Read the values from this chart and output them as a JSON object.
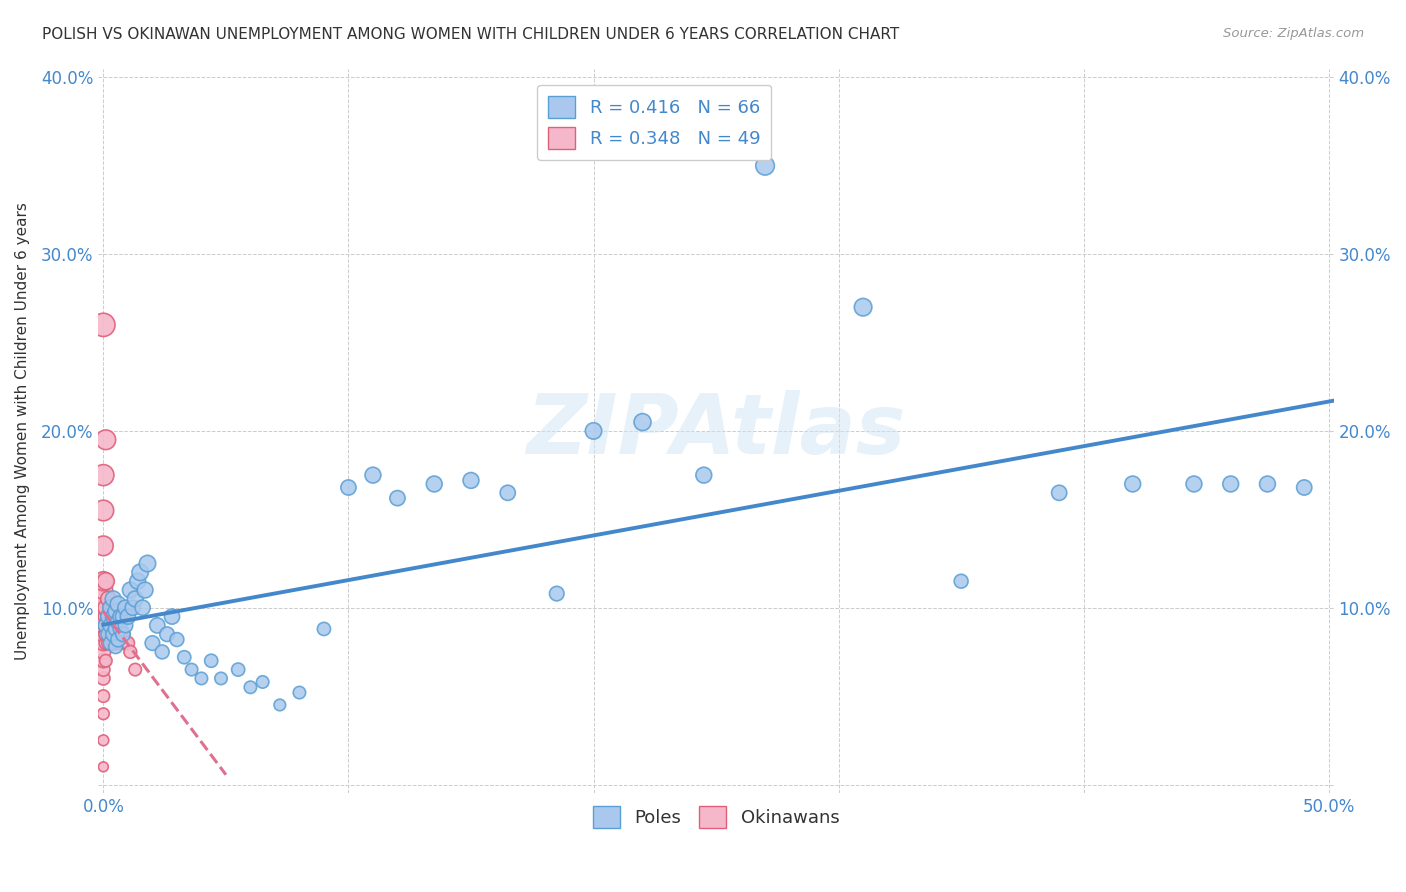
{
  "title": "POLISH VS OKINAWAN UNEMPLOYMENT AMONG WOMEN WITH CHILDREN UNDER 6 YEARS CORRELATION CHART",
  "source": "Source: ZipAtlas.com",
  "ylabel": "Unemployment Among Women with Children Under 6 years",
  "xlim": [
    -0.002,
    0.502
  ],
  "ylim": [
    -0.005,
    0.405
  ],
  "xticks": [
    0.0,
    0.1,
    0.2,
    0.3,
    0.4,
    0.5
  ],
  "yticks": [
    0.0,
    0.1,
    0.2,
    0.3,
    0.4
  ],
  "xtick_labels": [
    "0.0%",
    "",
    "",
    "",
    "",
    "50.0%"
  ],
  "ytick_labels": [
    "",
    "10.0%",
    "20.0%",
    "30.0%",
    "40.0%"
  ],
  "right_ytick_labels": [
    "",
    "10.0%",
    "20.0%",
    "30.0%",
    "40.0%"
  ],
  "poles_color": "#aac8ed",
  "poles_edge_color": "#5a9fd4",
  "okinawans_color": "#f4b8ca",
  "okinawans_edge_color": "#e0607a",
  "poles_R": 0.416,
  "poles_N": 66,
  "okinawans_R": 0.348,
  "okinawans_N": 49,
  "regression_line_color_poles": "#4488cc",
  "regression_line_color_okinawans": "#e07090",
  "watermark": "ZIPAtlas",
  "legend_label_poles": "Poles",
  "legend_label_okinawans": "Okinawans",
  "poles_x": [
    0.001,
    0.002,
    0.002,
    0.003,
    0.003,
    0.003,
    0.004,
    0.004,
    0.004,
    0.005,
    0.005,
    0.005,
    0.006,
    0.006,
    0.006,
    0.007,
    0.007,
    0.008,
    0.008,
    0.009,
    0.009,
    0.01,
    0.011,
    0.012,
    0.013,
    0.014,
    0.015,
    0.016,
    0.017,
    0.018,
    0.02,
    0.022,
    0.024,
    0.026,
    0.028,
    0.03,
    0.033,
    0.036,
    0.04,
    0.044,
    0.048,
    0.055,
    0.06,
    0.065,
    0.072,
    0.08,
    0.09,
    0.1,
    0.11,
    0.12,
    0.135,
    0.15,
    0.165,
    0.185,
    0.2,
    0.22,
    0.245,
    0.27,
    0.31,
    0.35,
    0.39,
    0.42,
    0.445,
    0.46,
    0.475,
    0.49
  ],
  "poles_y": [
    0.09,
    0.085,
    0.095,
    0.08,
    0.09,
    0.1,
    0.085,
    0.095,
    0.105,
    0.078,
    0.088,
    0.098,
    0.082,
    0.092,
    0.102,
    0.088,
    0.095,
    0.085,
    0.095,
    0.09,
    0.1,
    0.095,
    0.11,
    0.1,
    0.105,
    0.115,
    0.12,
    0.1,
    0.11,
    0.125,
    0.08,
    0.09,
    0.075,
    0.085,
    0.095,
    0.082,
    0.072,
    0.065,
    0.06,
    0.07,
    0.06,
    0.065,
    0.055,
    0.058,
    0.045,
    0.052,
    0.088,
    0.168,
    0.175,
    0.162,
    0.17,
    0.172,
    0.165,
    0.108,
    0.2,
    0.205,
    0.175,
    0.35,
    0.27,
    0.115,
    0.165,
    0.17,
    0.17,
    0.17,
    0.17,
    0.168
  ],
  "okinawans_x": [
    0.0,
    0.0,
    0.0,
    0.0,
    0.0,
    0.0,
    0.0,
    0.0,
    0.0,
    0.0,
    0.0,
    0.0,
    0.0,
    0.0,
    0.0,
    0.0,
    0.0,
    0.0,
    0.0,
    0.0,
    0.001,
    0.001,
    0.001,
    0.001,
    0.001,
    0.001,
    0.001,
    0.001,
    0.002,
    0.002,
    0.002,
    0.002,
    0.003,
    0.003,
    0.003,
    0.004,
    0.004,
    0.004,
    0.005,
    0.005,
    0.006,
    0.006,
    0.007,
    0.007,
    0.008,
    0.009,
    0.01,
    0.011,
    0.013
  ],
  "okinawans_y": [
    0.01,
    0.025,
    0.04,
    0.05,
    0.06,
    0.065,
    0.07,
    0.075,
    0.08,
    0.085,
    0.09,
    0.095,
    0.1,
    0.105,
    0.11,
    0.115,
    0.135,
    0.155,
    0.175,
    0.26,
    0.07,
    0.08,
    0.085,
    0.09,
    0.095,
    0.1,
    0.115,
    0.195,
    0.08,
    0.09,
    0.095,
    0.105,
    0.085,
    0.09,
    0.1,
    0.08,
    0.09,
    0.1,
    0.085,
    0.095,
    0.08,
    0.095,
    0.085,
    0.095,
    0.085,
    0.08,
    0.08,
    0.075,
    0.065
  ],
  "poles_sizes": [
    120,
    110,
    120,
    110,
    120,
    130,
    110,
    120,
    130,
    100,
    110,
    120,
    110,
    120,
    130,
    110,
    120,
    110,
    120,
    110,
    120,
    120,
    130,
    120,
    130,
    130,
    140,
    120,
    130,
    140,
    110,
    120,
    100,
    110,
    120,
    100,
    90,
    80,
    80,
    90,
    80,
    90,
    80,
    80,
    70,
    80,
    90,
    120,
    130,
    120,
    130,
    130,
    120,
    110,
    140,
    150,
    130,
    180,
    160,
    100,
    120,
    130,
    130,
    130,
    130,
    120
  ],
  "okinawans_sizes": [
    50,
    60,
    70,
    80,
    90,
    90,
    100,
    110,
    120,
    130,
    140,
    150,
    160,
    170,
    180,
    190,
    200,
    220,
    230,
    280,
    80,
    90,
    100,
    110,
    120,
    130,
    150,
    200,
    90,
    100,
    110,
    120,
    90,
    100,
    110,
    90,
    100,
    110,
    90,
    100,
    90,
    100,
    90,
    100,
    90,
    90,
    90,
    85,
    80
  ]
}
